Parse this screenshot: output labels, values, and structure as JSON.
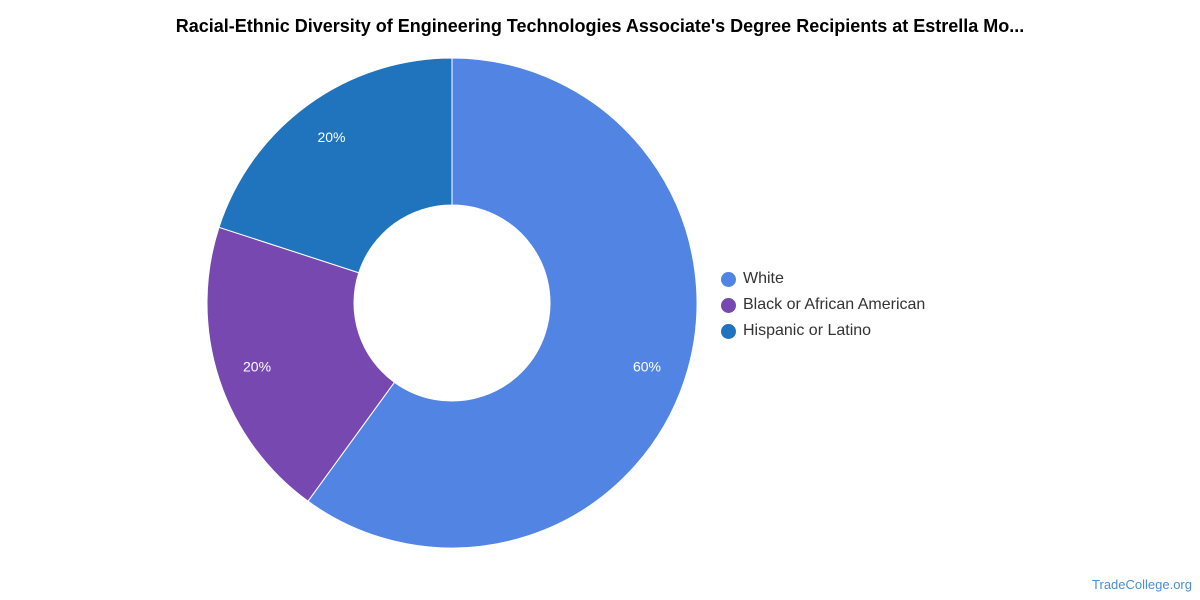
{
  "chart_data": {
    "type": "pie",
    "title": "Racial-Ethnic Diversity of Engineering Technologies Associate's Degree Recipients at Estrella Mo...",
    "donut": true,
    "categories": [
      "White",
      "Black or African American",
      "Hispanic or Latino"
    ],
    "values": [
      60,
      20,
      20
    ],
    "labels": [
      "60%",
      "20%",
      "20%"
    ],
    "colors": [
      "#5285e3",
      "#7648b0",
      "#1f74bd"
    ],
    "legend_position": "right"
  },
  "source": "TradeCollege.org"
}
